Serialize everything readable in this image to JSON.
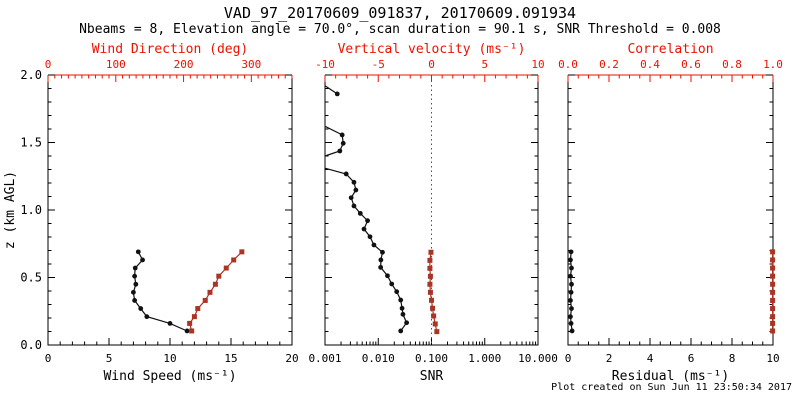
{
  "title": "VAD_97_20170609_091837, 20170609.091934",
  "subtitle": "Nbeams = 8, Elevation angle = 70.0°, scan duration = 90.1 s, SNR Threshold = 0.008",
  "footer": "Plot created on Sun Jun 11 23:50:34 2017",
  "colors": {
    "background": "#ffffff",
    "frame": "#000000",
    "top_axis_red": "#ee1100",
    "series_black": "#111111",
    "series_red": "#aa3524",
    "refline_red": "#ee1100"
  },
  "y_axis": {
    "label": "z (km AGL)",
    "range": [
      0,
      2
    ],
    "majors": [
      0,
      0.5,
      1,
      1.5,
      2
    ],
    "labels": [
      "0.0",
      "0.5",
      "1.0",
      "1.5",
      "2.0"
    ],
    "minor_step": 0.1
  },
  "chart_data": [
    {
      "name": "wind-panel",
      "type": "line",
      "bottom_axis": {
        "label": "Wind Speed (ms⁻¹)",
        "scale": "linear",
        "range": [
          0,
          20
        ],
        "majors": [
          0,
          5,
          10,
          15,
          20
        ],
        "labels": [
          "0",
          "5",
          "10",
          "15",
          "20"
        ],
        "minor_step": 1
      },
      "top_axis": {
        "label": "Wind Direction (deg)",
        "scale": "linear",
        "range": [
          0,
          360
        ],
        "majors": [
          0,
          100,
          200,
          300
        ],
        "labels": [
          "0",
          "100",
          "200",
          "300"
        ],
        "minor_step": 10
      },
      "series": [
        {
          "name": "wind-speed",
          "axis": "bottom",
          "color": "black",
          "marker": "circle",
          "points": [
            [
              7.4,
              0.69
            ],
            [
              7.75,
              0.63
            ],
            [
              7.15,
              0.57
            ],
            [
              7.1,
              0.51
            ],
            [
              7.2,
              0.45
            ],
            [
              7.0,
              0.39
            ],
            [
              7.1,
              0.33
            ],
            [
              7.6,
              0.27
            ],
            [
              8.1,
              0.21
            ],
            [
              10.0,
              0.16
            ],
            [
              11.4,
              0.104
            ]
          ]
        },
        {
          "name": "wind-direction",
          "axis": "top",
          "color": "red",
          "marker": "square",
          "points": [
            [
              286,
              0.69
            ],
            [
              274,
              0.63
            ],
            [
              263,
              0.57
            ],
            [
              252,
              0.51
            ],
            [
              247,
              0.45
            ],
            [
              239,
              0.39
            ],
            [
              232,
              0.33
            ],
            [
              221,
              0.27
            ],
            [
              216,
              0.21
            ],
            [
              209,
              0.16
            ],
            [
              212,
              0.104
            ]
          ]
        }
      ]
    },
    {
      "name": "snr-panel",
      "type": "line",
      "bottom_axis": {
        "label": "SNR",
        "scale": "log",
        "range": [
          0.001,
          10
        ],
        "majors": [
          0.001,
          0.01,
          0.1,
          1,
          10
        ],
        "labels": [
          "0.001",
          "0.010",
          "0.100",
          "1.000",
          "10.000"
        ]
      },
      "top_axis": {
        "label": "Vertical velocity (ms⁻¹)",
        "scale": "linear",
        "range": [
          -10,
          10
        ],
        "majors": [
          -10,
          -5,
          0,
          5,
          10
        ],
        "labels": [
          "-10",
          "-5",
          "0",
          "5",
          "10"
        ],
        "minor_step": 1
      },
      "refline": {
        "axis": "top",
        "value": 0
      },
      "series": [
        {
          "name": "snr",
          "axis": "bottom",
          "color": "black",
          "marker": "circle",
          "segments": [
            [
              [
                0.001,
                1.92,
                0
              ],
              [
                0.0017,
                1.86,
                1
              ]
            ],
            [
              [
                0.001,
                1.62,
                0
              ],
              [
                0.0021,
                1.556,
                1
              ],
              [
                0.0022,
                1.494,
                1
              ],
              [
                0.0019,
                1.437,
                1
              ],
              [
                0.001,
                1.4,
                0
              ]
            ],
            [
              [
                0.001,
                1.31,
                0
              ],
              [
                0.0025,
                1.267,
                1
              ],
              [
                0.0035,
                1.205,
                1
              ],
              [
                0.0038,
                1.148,
                1
              ],
              [
                0.0031,
                1.091,
                1
              ],
              [
                0.0035,
                1.03,
                1
              ],
              [
                0.0046,
                0.975,
                1
              ],
              [
                0.0063,
                0.921,
                1
              ],
              [
                0.0054,
                0.859,
                1
              ],
              [
                0.007,
                0.802,
                1
              ],
              [
                0.0083,
                0.741,
                1
              ],
              [
                0.012,
                0.687,
                1
              ],
              [
                0.0112,
                0.63,
                1
              ],
              [
                0.0111,
                0.575,
                1
              ],
              [
                0.0149,
                0.513,
                1
              ],
              [
                0.0179,
                0.452,
                1
              ],
              [
                0.0222,
                0.395,
                1
              ],
              [
                0.0264,
                0.333,
                1
              ],
              [
                0.028,
                0.272,
                1
              ],
              [
                0.0291,
                0.227,
                1
              ],
              [
                0.0341,
                0.165,
                1
              ],
              [
                0.0264,
                0.104,
                1
              ]
            ]
          ]
        },
        {
          "name": "vertical-velocity",
          "axis": "top",
          "color": "red",
          "marker": "square",
          "points": [
            [
              -0.05,
              0.687
            ],
            [
              -0.15,
              0.627
            ],
            [
              -0.15,
              0.568
            ],
            [
              -0.1,
              0.509
            ],
            [
              -0.15,
              0.45
            ],
            [
              -0.1,
              0.39
            ],
            [
              0.0,
              0.331
            ],
            [
              0.1,
              0.272
            ],
            [
              0.2,
              0.215
            ],
            [
              0.35,
              0.156
            ],
            [
              0.5,
              0.099
            ]
          ]
        }
      ]
    },
    {
      "name": "residual-panel",
      "type": "line",
      "bottom_axis": {
        "label": "Residual (ms⁻¹)",
        "scale": "linear",
        "range": [
          0,
          10
        ],
        "majors": [
          0,
          2,
          4,
          6,
          8,
          10
        ],
        "labels": [
          "0",
          "2",
          "4",
          "6",
          "8",
          "10"
        ],
        "minor_step": 0.5
      },
      "top_axis": {
        "label": "Correlation",
        "scale": "linear",
        "range": [
          0,
          1
        ],
        "majors": [
          0,
          0.2,
          0.4,
          0.6,
          0.8,
          1
        ],
        "labels": [
          "0.0",
          "0.2",
          "0.4",
          "0.6",
          "0.8",
          "1.0"
        ],
        "minor_step": 0.05
      },
      "series": [
        {
          "name": "residual",
          "axis": "bottom",
          "color": "black",
          "marker": "circle",
          "points": [
            [
              0.15,
              0.69
            ],
            [
              0.12,
              0.63
            ],
            [
              0.17,
              0.57
            ],
            [
              0.12,
              0.51
            ],
            [
              0.17,
              0.45
            ],
            [
              0.15,
              0.39
            ],
            [
              0.12,
              0.33
            ],
            [
              0.17,
              0.27
            ],
            [
              0.12,
              0.21
            ],
            [
              0.15,
              0.16
            ],
            [
              0.2,
              0.104
            ]
          ]
        },
        {
          "name": "correlation",
          "axis": "top",
          "color": "red",
          "marker": "square",
          "points": [
            [
              0.998,
              0.69
            ],
            [
              0.998,
              0.63
            ],
            [
              0.998,
              0.57
            ],
            [
              0.998,
              0.51
            ],
            [
              0.998,
              0.45
            ],
            [
              0.998,
              0.39
            ],
            [
              0.998,
              0.33
            ],
            [
              0.998,
              0.27
            ],
            [
              0.998,
              0.21
            ],
            [
              0.998,
              0.16
            ],
            [
              0.998,
              0.104
            ]
          ]
        }
      ]
    }
  ]
}
